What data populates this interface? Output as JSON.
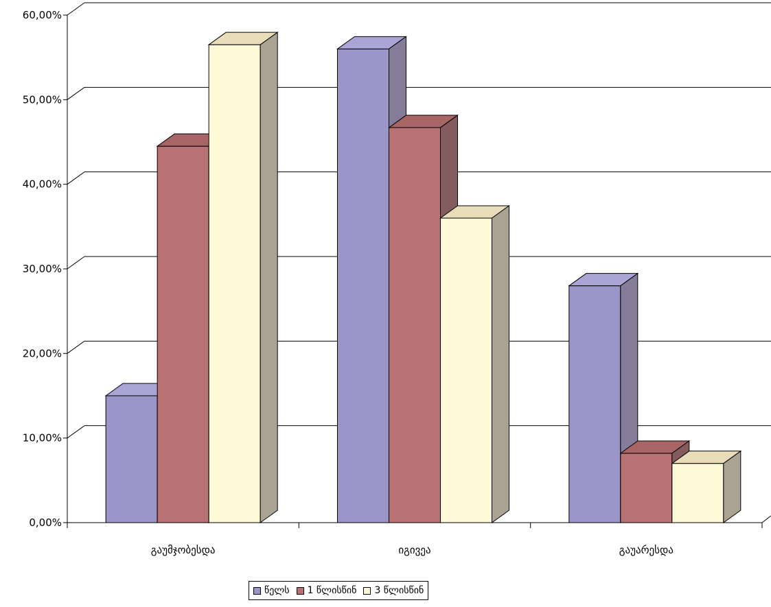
{
  "chart_data": {
    "type": "bar",
    "categories": [
      "გაუმჯობესდა",
      "იგივეა",
      "გაუარესდა"
    ],
    "series": [
      {
        "name": "წელს",
        "values": [
          15.0,
          56.0,
          28.0
        ],
        "color": "#9a96c8",
        "side": "#847c99",
        "top": "#aaa5d4"
      },
      {
        "name": "1 წლისწინ",
        "values": [
          44.5,
          46.7,
          8.2
        ],
        "color": "#b97273",
        "side": "#845c5d",
        "top": "#a76566"
      },
      {
        "name": "3 წლისწინ",
        "values": [
          56.5,
          36.0,
          7.0
        ],
        "color": "#fff9d8",
        "side": "#aaa394",
        "top": "#e8ddb8"
      }
    ],
    "ylim": [
      0,
      60
    ],
    "yticks": [
      "0,00%",
      "10,00%",
      "20,00%",
      "30,00%",
      "40,00%",
      "50,00%",
      "60,00%"
    ],
    "ytick_values": [
      0,
      10,
      20,
      30,
      40,
      50,
      60
    ],
    "grid": true,
    "legend_position": "bottom",
    "xlabel": "",
    "ylabel": "",
    "title": ""
  }
}
